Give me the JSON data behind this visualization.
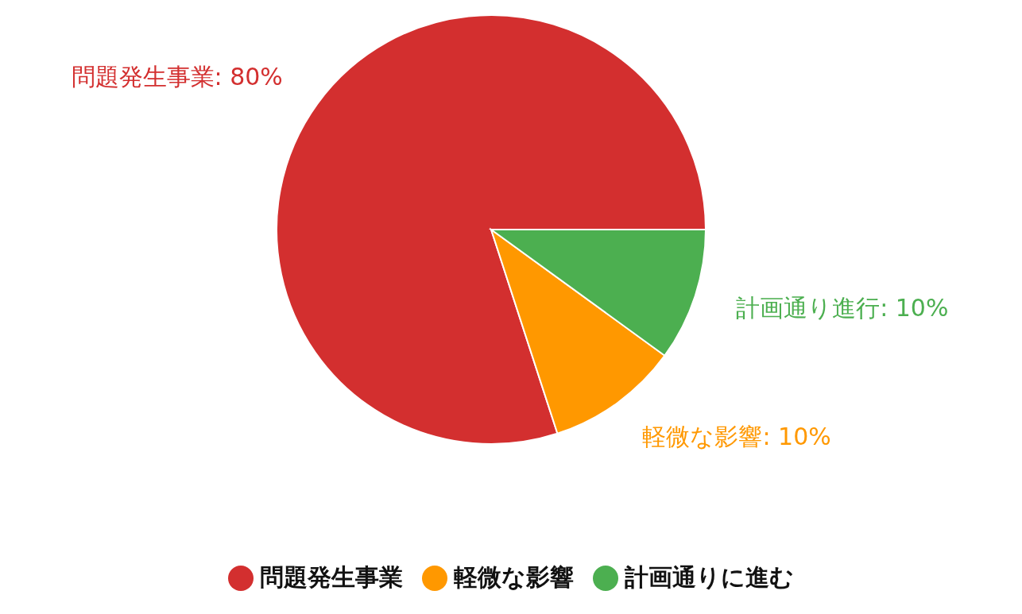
{
  "chart_data": {
    "type": "pie",
    "categories": [
      "問題発生事業",
      "軽微な影響",
      "計画通りに進む"
    ],
    "values": [
      80,
      10,
      10
    ],
    "colors": [
      "#d32f2f",
      "#ff9800",
      "#4caf50"
    ],
    "value_labels": [
      "問題発生事業: 80%",
      "軽微な影響: 10%",
      "計画通り進行: 10%"
    ],
    "legend": "bottom"
  }
}
